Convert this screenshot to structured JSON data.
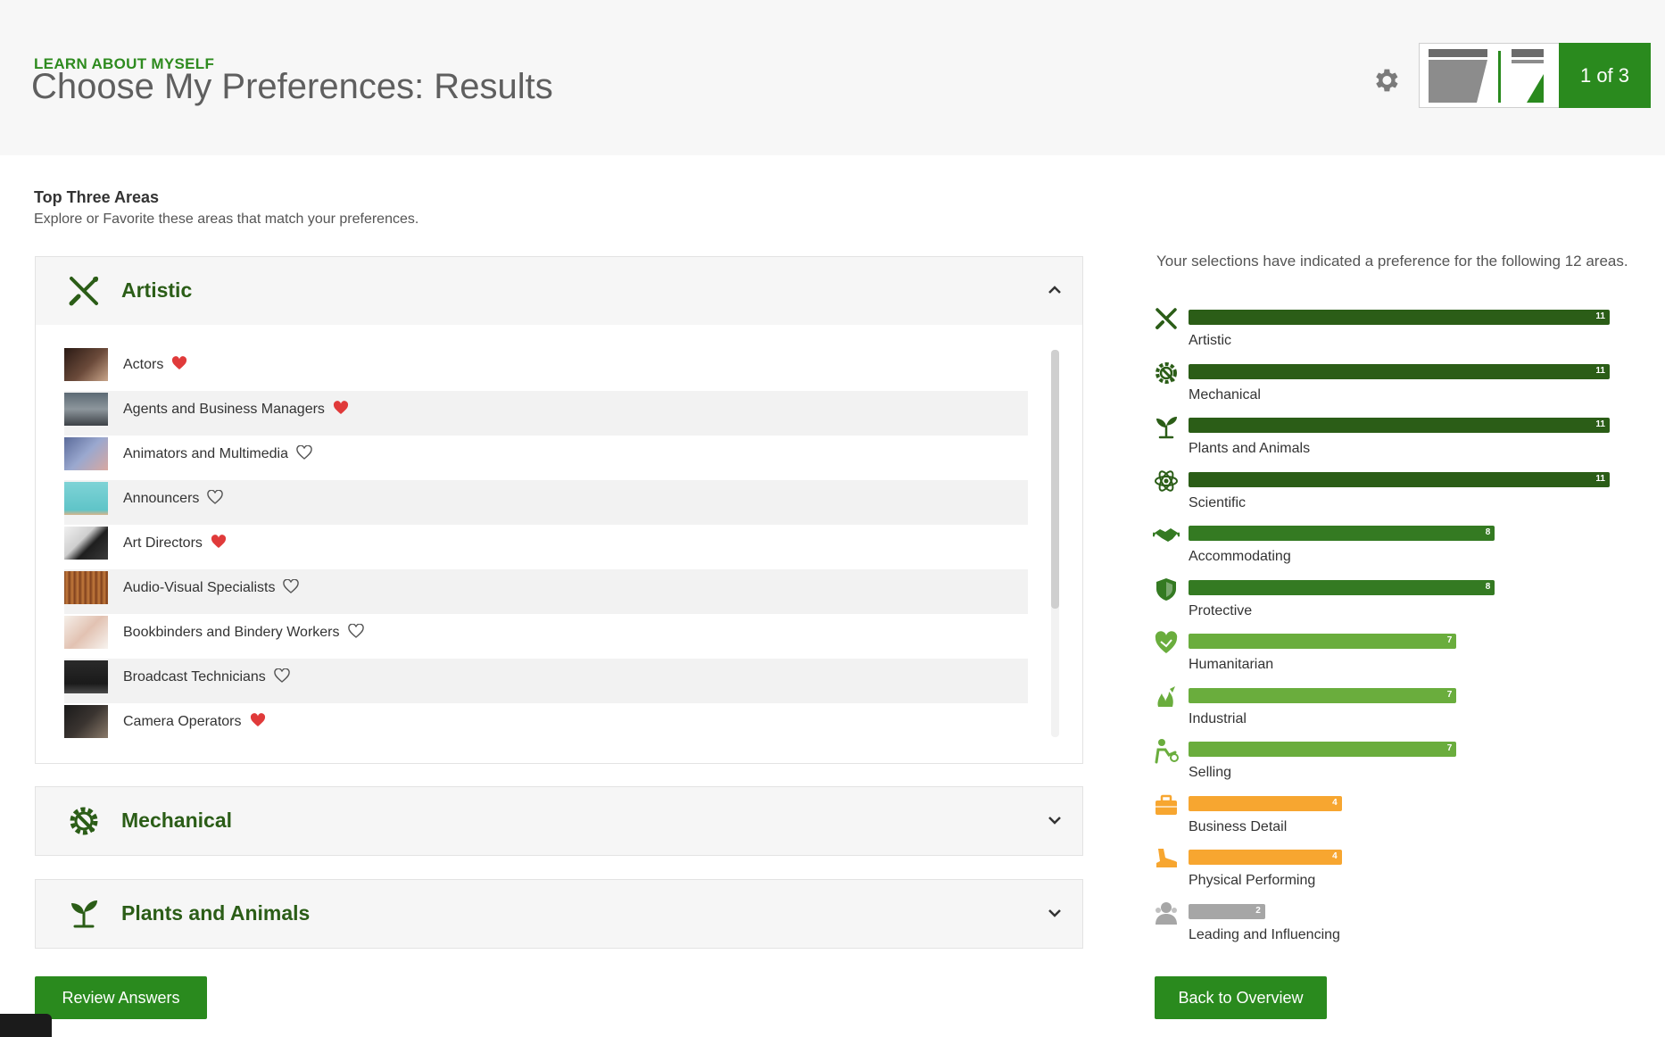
{
  "header": {
    "kicker": "LEARN ABOUT MYSELF",
    "title": "Choose My Preferences: Results",
    "progress": "1 of 3"
  },
  "intro": {
    "title": "Top Three Areas",
    "subtitle": "Explore or Favorite these areas that match your preferences."
  },
  "panels": [
    {
      "label": "Artistic",
      "expanded": true,
      "items": [
        {
          "label": "Actors",
          "favorite": true
        },
        {
          "label": "Agents and Business Managers",
          "favorite": true
        },
        {
          "label": "Animators and Multimedia",
          "favorite": false
        },
        {
          "label": "Announcers",
          "favorite": false
        },
        {
          "label": "Art Directors",
          "favorite": true
        },
        {
          "label": "Audio-Visual Specialists",
          "favorite": false
        },
        {
          "label": "Bookbinders and Bindery Workers",
          "favorite": false
        },
        {
          "label": "Broadcast Technicians",
          "favorite": false
        },
        {
          "label": "Camera Operators",
          "favorite": true
        }
      ]
    },
    {
      "label": "Mechanical",
      "expanded": false
    },
    {
      "label": "Plants and Animals",
      "expanded": false
    }
  ],
  "summary": {
    "intro": "Your selections have indicated a preference for the following 12 areas.",
    "max": 11,
    "areas": [
      {
        "label": "Artistic",
        "value": 11,
        "color": "#2b5d17",
        "icon": "artistic-icon"
      },
      {
        "label": "Mechanical",
        "value": 11,
        "color": "#2b5d17",
        "icon": "mechanical-icon"
      },
      {
        "label": "Plants and Animals",
        "value": 11,
        "color": "#2b5d17",
        "icon": "plants-icon"
      },
      {
        "label": "Scientific",
        "value": 11,
        "color": "#2b5d17",
        "icon": "scientific-icon"
      },
      {
        "label": "Accommodating",
        "value": 8,
        "color": "#347a22",
        "icon": "accommodating-icon"
      },
      {
        "label": "Protective",
        "value": 8,
        "color": "#347a22",
        "icon": "protective-icon"
      },
      {
        "label": "Humanitarian",
        "value": 7,
        "color": "#6aad3d",
        "icon": "humanitarian-icon"
      },
      {
        "label": "Industrial",
        "value": 7,
        "color": "#6aad3d",
        "icon": "industrial-icon"
      },
      {
        "label": "Selling",
        "value": 7,
        "color": "#6aad3d",
        "icon": "selling-icon"
      },
      {
        "label": "Business Detail",
        "value": 4,
        "color": "#f7a630",
        "icon": "business-detail-icon"
      },
      {
        "label": "Physical Performing",
        "value": 4,
        "color": "#f7a630",
        "icon": "physical-performing-icon"
      },
      {
        "label": "Leading and Influencing",
        "value": 2,
        "color": "#a6a6a6",
        "icon": "leading-icon"
      }
    ]
  },
  "buttons": {
    "review": "Review Answers",
    "back": "Back to Overview"
  }
}
